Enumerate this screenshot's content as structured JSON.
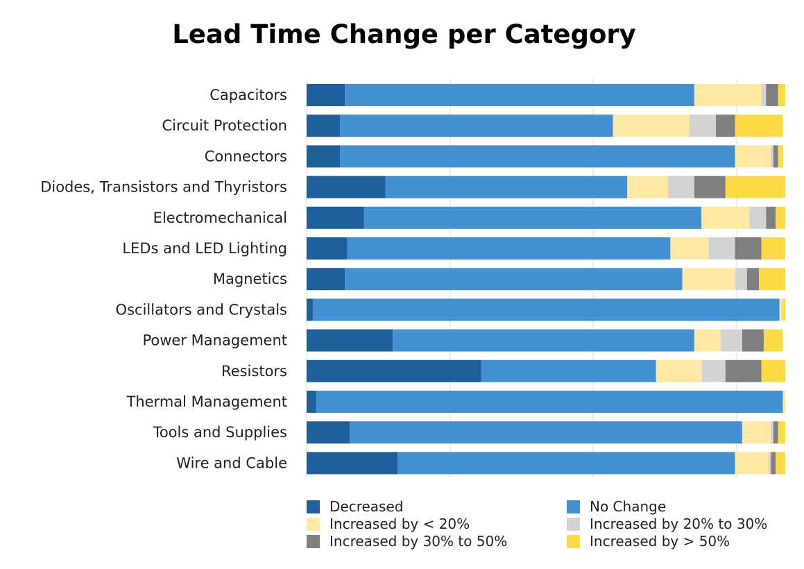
{
  "chart_data": {
    "type": "bar",
    "orientation": "horizontal",
    "stacked": true,
    "title": "Lead Time Change per Category",
    "xlabel": "",
    "ylabel": "",
    "xlim": [
      0,
      100
    ],
    "grid": true,
    "legend_position": "bottom",
    "categories": [
      "Capacitors",
      "Circuit Protection",
      "Connectors",
      "Diodes, Transistors and Thyristors",
      "Electromechanical",
      "LEDs and LED Lighting",
      "Magnetics",
      "Oscillators and Crystals",
      "Power Management",
      "Resistors",
      "Thermal Management",
      "Tools and Supplies",
      "Wire and Cable"
    ],
    "series": [
      {
        "name": "Decreased",
        "color": "#1f5f9c",
        "values": [
          8,
          7,
          7,
          16.5,
          12,
          8.5,
          8,
          1.3,
          18,
          36.5,
          2,
          9,
          19
        ]
      },
      {
        "name": "No Change",
        "color": "#4390d3",
        "values": [
          73,
          57,
          82.5,
          50.5,
          70.5,
          67.5,
          70.5,
          97.5,
          63,
          36.5,
          97.5,
          82,
          70.5
        ]
      },
      {
        "name": "Increased by < 20%",
        "color": "#fde9a2",
        "values": [
          14,
          16,
          7.5,
          8.5,
          10,
          8,
          11,
          0.6,
          5.5,
          9.5,
          0.4,
          6,
          7
        ]
      },
      {
        "name": "Increased by 20% to 30%",
        "color": "#d3d3d3",
        "values": [
          1,
          5.5,
          0.5,
          5.5,
          3.5,
          5.5,
          2.5,
          0,
          4.5,
          5,
          0,
          0.5,
          0.5
        ]
      },
      {
        "name": "Increased by 30% to 50%",
        "color": "#7f7f7f",
        "values": [
          2.5,
          4,
          1,
          6.5,
          2,
          5.5,
          2.5,
          0,
          4.5,
          7.5,
          0,
          1,
          1
        ]
      },
      {
        "name": "Increased by > 50%",
        "color": "#fcda45",
        "values": [
          1.5,
          10,
          1,
          12.5,
          2,
          5,
          5.5,
          0.6,
          4,
          5,
          0.1,
          1.5,
          2
        ]
      }
    ]
  }
}
